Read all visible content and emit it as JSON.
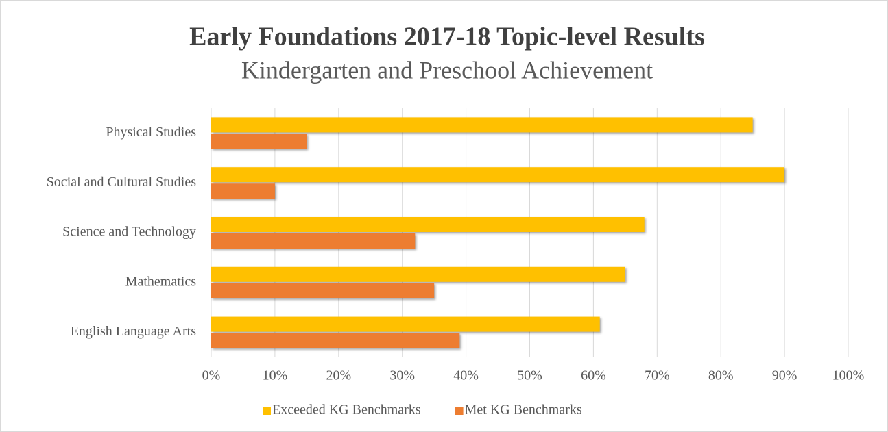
{
  "chart_data": {
    "type": "bar",
    "orientation": "horizontal",
    "title": "Early Foundations 2017-18 Topic-level Results",
    "subtitle": "Kindergarten and Preschool Achievement",
    "categories": [
      "Physical Studies",
      "Social and Cultural Studies",
      "Science and Technology",
      "Mathematics",
      "English Language Arts"
    ],
    "series": [
      {
        "name": "Exceeded KG Benchmarks",
        "color": "#ffc000",
        "values": [
          85,
          90,
          68,
          65,
          61
        ]
      },
      {
        "name": "Met KG Benchmarks",
        "color": "#ed7d31",
        "values": [
          15,
          10,
          32,
          35,
          39
        ]
      }
    ],
    "xlim": [
      0,
      100
    ],
    "xticks": [
      {
        "value": 0,
        "label": "0%"
      },
      {
        "value": 10,
        "label": "10%"
      },
      {
        "value": 20,
        "label": "20%"
      },
      {
        "value": 30,
        "label": "30%"
      },
      {
        "value": 40,
        "label": "40%"
      },
      {
        "value": 50,
        "label": "50%"
      },
      {
        "value": 60,
        "label": "60%"
      },
      {
        "value": 70,
        "label": "70%"
      },
      {
        "value": 80,
        "label": "80%"
      },
      {
        "value": 90,
        "label": "90%"
      },
      {
        "value": 100,
        "label": "100%"
      }
    ],
    "grid": true,
    "legend": "bottom"
  }
}
